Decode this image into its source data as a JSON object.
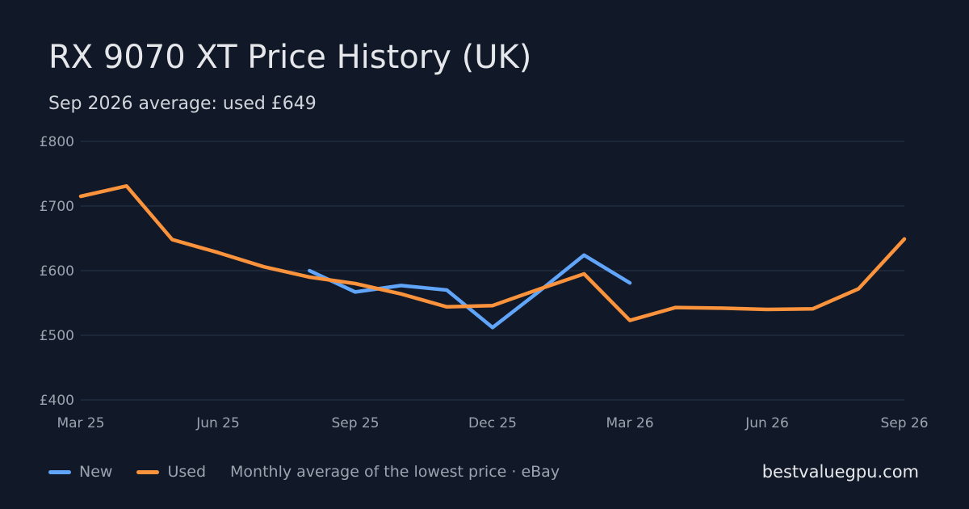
{
  "header": {
    "title": "RX 9070 XT Price History (UK)",
    "subtitle": "Sep 2026 average: used £649"
  },
  "footer": {
    "note": "Monthly average of the lowest price · eBay",
    "site": "bestvaluegpu.com"
  },
  "colors": {
    "background": "#111827",
    "new": "#60a5fa",
    "used": "#fb923c",
    "grid": "#243044"
  },
  "chart_data": {
    "type": "line",
    "x": [
      "Mar 25",
      "Apr 25",
      "May 25",
      "Jun 25",
      "Jul 25",
      "Aug 25",
      "Sep 25",
      "Oct 25",
      "Nov 25",
      "Dec 25",
      "Jan 26",
      "Feb 26",
      "Mar 26",
      "Apr 26",
      "May 26",
      "Jun 26",
      "Jul 26",
      "Aug 26",
      "Sep 26"
    ],
    "x_tick_labels": [
      "Mar 25",
      "Jun 25",
      "Sep 25",
      "Dec 25",
      "Mar 26",
      "Jun 26",
      "Sep 26"
    ],
    "y_tick_labels": [
      "£800",
      "£700",
      "£600",
      "£500",
      "£400"
    ],
    "ylim": [
      400,
      800
    ],
    "y_ticks": [
      800,
      700,
      600,
      500,
      400
    ],
    "grid": true,
    "legend": "bottom-left",
    "series": [
      {
        "name": "New",
        "color": "#60a5fa",
        "values": [
          null,
          null,
          null,
          null,
          null,
          600,
          567,
          577,
          570,
          512,
          567,
          624,
          581,
          null,
          null,
          null,
          null,
          null,
          null
        ]
      },
      {
        "name": "Used",
        "color": "#fb923c",
        "values": [
          715,
          731,
          648,
          628,
          606,
          590,
          580,
          564,
          544,
          546,
          571,
          595,
          523,
          543,
          542,
          540,
          541,
          572,
          649
        ]
      }
    ]
  }
}
